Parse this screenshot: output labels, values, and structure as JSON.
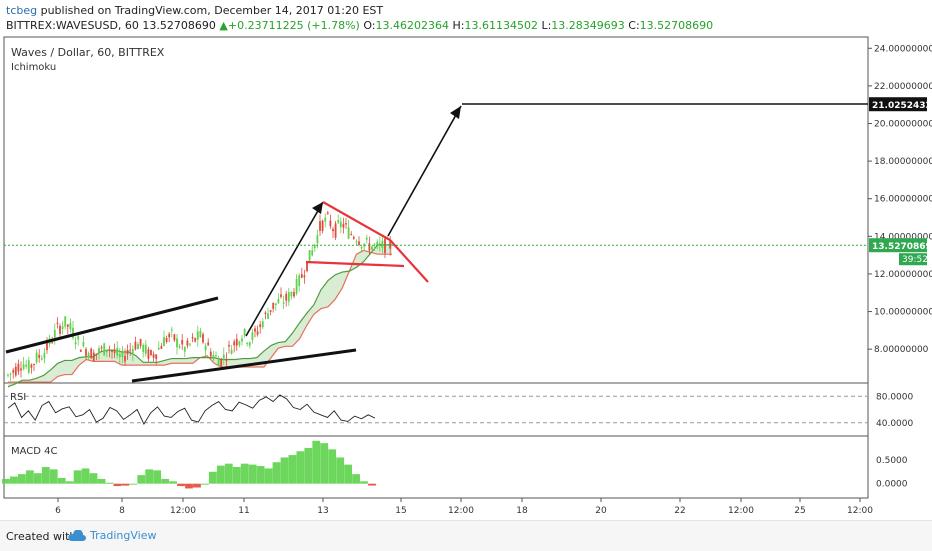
{
  "header": {
    "user": "tcbeg",
    "published": "published on TradingView.com, December 14, 2017 01:20 EST",
    "symbol": "BITTREX:WAVESUSD, 60",
    "last": "13.52708690",
    "change_arrow": "▲",
    "change": "+0.23711225 (+1.78%)",
    "o_label": "O:",
    "o": "13.46202364",
    "h_label": "H:",
    "h": "13.61134502",
    "l_label": "L:",
    "l": "13.28349693",
    "c_label": "C:",
    "c": "13.52708690"
  },
  "pane": {
    "title": "Waves / Dollar, 60, BITTREX",
    "indicator": "Ichimoku",
    "rsi_label": "RSI",
    "macd_label": "MACD 4C"
  },
  "footer": {
    "created_with": "Created with",
    "brand": "TradingView"
  },
  "colors": {
    "up": "#5dd24b",
    "down": "#e04a3a",
    "trend_red": "#e8333a",
    "cloud_fill": "#b9dfb0",
    "ichimoku_red": "#e8705c",
    "ichimoku_green": "#4f9b3f",
    "last_price_line": "#33aa33"
  },
  "chart_data": {
    "type": "candlestick",
    "main_axis": {
      "ticks": [
        "24.00000000",
        "22.00000000",
        "20.00000000",
        "18.00000000",
        "16.00000000",
        "14.00000000",
        "12.00000000",
        "10.00000000",
        "8.00000000"
      ],
      "tick_values": [
        24,
        22,
        20,
        18,
        16,
        14,
        12,
        10,
        8
      ],
      "ylim": [
        6.2,
        24.6
      ],
      "target_price": "21.02524320",
      "target_value": 21.025,
      "last_price": "13.52708690",
      "last_value": 13.527,
      "countdown": "39:52"
    },
    "rsi_axis": {
      "ticks": [
        "80.0000",
        "40.0000"
      ],
      "tick_values": [
        80,
        40
      ],
      "ylim": [
        20,
        100
      ]
    },
    "macd_axis": {
      "ticks": [
        "0.5000",
        "0.0000"
      ],
      "tick_values": [
        0.5,
        0.0
      ],
      "ylim": [
        -0.3,
        1.0
      ]
    },
    "x_labels": [
      "6",
      "8",
      "12:00",
      "11",
      "13",
      "15",
      "12:00",
      "18",
      "20",
      "22",
      "12:00",
      "25",
      "12:00"
    ],
    "x_label_positions": [
      58,
      122,
      183,
      244,
      323,
      401,
      461,
      522,
      601,
      680,
      741,
      800,
      860
    ],
    "price_series": [
      6.6,
      6.9,
      7.3,
      7.0,
      7.5,
      7.8,
      8.4,
      9.1,
      9.4,
      9.0,
      8.3,
      8.0,
      7.7,
      7.9,
      8.1,
      7.8,
      7.5,
      7.9,
      8.3,
      8.1,
      7.6,
      7.9,
      8.5,
      8.7,
      8.3,
      8.0,
      8.4,
      8.7,
      8.2,
      7.6,
      7.4,
      7.9,
      8.4,
      8.8,
      8.5,
      8.9,
      9.6,
      10.2,
      10.5,
      10.6,
      11.0,
      11.6,
      12.5,
      13.4,
      14.6,
      14.9,
      14.3,
      14.7,
      14.2,
      14.0,
      13.6,
      13.5,
      13.4,
      13.5,
      13.53
    ],
    "rsi_series": [
      62,
      70,
      48,
      58,
      44,
      66,
      72,
      55,
      61,
      64,
      49,
      52,
      60,
      41,
      47,
      63,
      58,
      45,
      52,
      60,
      38,
      55,
      64,
      50,
      48,
      57,
      62,
      44,
      41,
      58,
      66,
      72,
      60,
      58,
      71,
      67,
      62,
      74,
      79,
      72,
      82,
      76,
      63,
      60,
      68,
      56,
      52,
      48,
      58,
      44,
      42,
      50,
      46,
      52,
      47
    ],
    "macd_hist": [
      0.1,
      0.15,
      0.2,
      0.28,
      0.22,
      0.35,
      0.3,
      0.12,
      0.05,
      0.28,
      0.32,
      0.22,
      0.1,
      0.02,
      -0.05,
      -0.04,
      0.0,
      0.18,
      0.3,
      0.28,
      0.1,
      0.05,
      -0.05,
      -0.1,
      -0.08,
      0.0,
      0.25,
      0.38,
      0.42,
      0.35,
      0.42,
      0.4,
      0.37,
      0.32,
      0.45,
      0.55,
      0.6,
      0.68,
      0.75,
      0.9,
      0.85,
      0.72,
      0.55,
      0.4,
      0.2,
      0.05,
      -0.04
    ]
  }
}
